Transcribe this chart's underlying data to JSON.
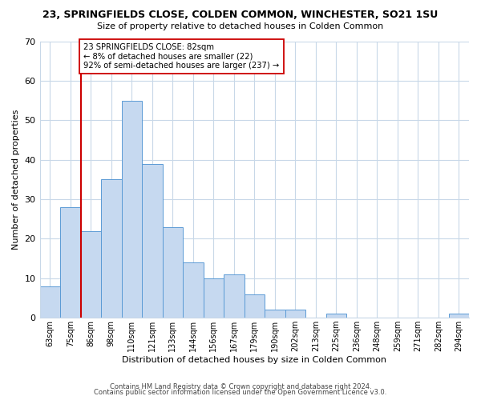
{
  "title": "23, SPRINGFIELDS CLOSE, COLDEN COMMON, WINCHESTER, SO21 1SU",
  "subtitle": "Size of property relative to detached houses in Colden Common",
  "xlabel": "Distribution of detached houses by size in Colden Common",
  "ylabel": "Number of detached properties",
  "bin_labels": [
    "63sqm",
    "75sqm",
    "86sqm",
    "98sqm",
    "110sqm",
    "121sqm",
    "133sqm",
    "144sqm",
    "156sqm",
    "167sqm",
    "179sqm",
    "190sqm",
    "202sqm",
    "213sqm",
    "225sqm",
    "236sqm",
    "248sqm",
    "259sqm",
    "271sqm",
    "282sqm",
    "294sqm"
  ],
  "bar_heights": [
    8,
    28,
    22,
    35,
    55,
    39,
    23,
    14,
    10,
    11,
    6,
    2,
    2,
    0,
    1,
    0,
    0,
    0,
    0,
    0,
    1
  ],
  "bar_color": "#c6d9f0",
  "bar_edge_color": "#5b9bd5",
  "ylim": [
    0,
    70
  ],
  "yticks": [
    0,
    10,
    20,
    30,
    40,
    50,
    60,
    70
  ],
  "vline_pos": 1.5,
  "vline_color": "#cc0000",
  "annotation_text": "23 SPRINGFIELDS CLOSE: 82sqm\n← 8% of detached houses are smaller (22)\n92% of semi-detached houses are larger (237) →",
  "annotation_box_color": "#ffffff",
  "annotation_box_edge": "#cc0000",
  "footer_line1": "Contains HM Land Registry data © Crown copyright and database right 2024.",
  "footer_line2": "Contains public sector information licensed under the Open Government Licence v3.0.",
  "background_color": "#ffffff",
  "grid_color": "#c8d8e8"
}
